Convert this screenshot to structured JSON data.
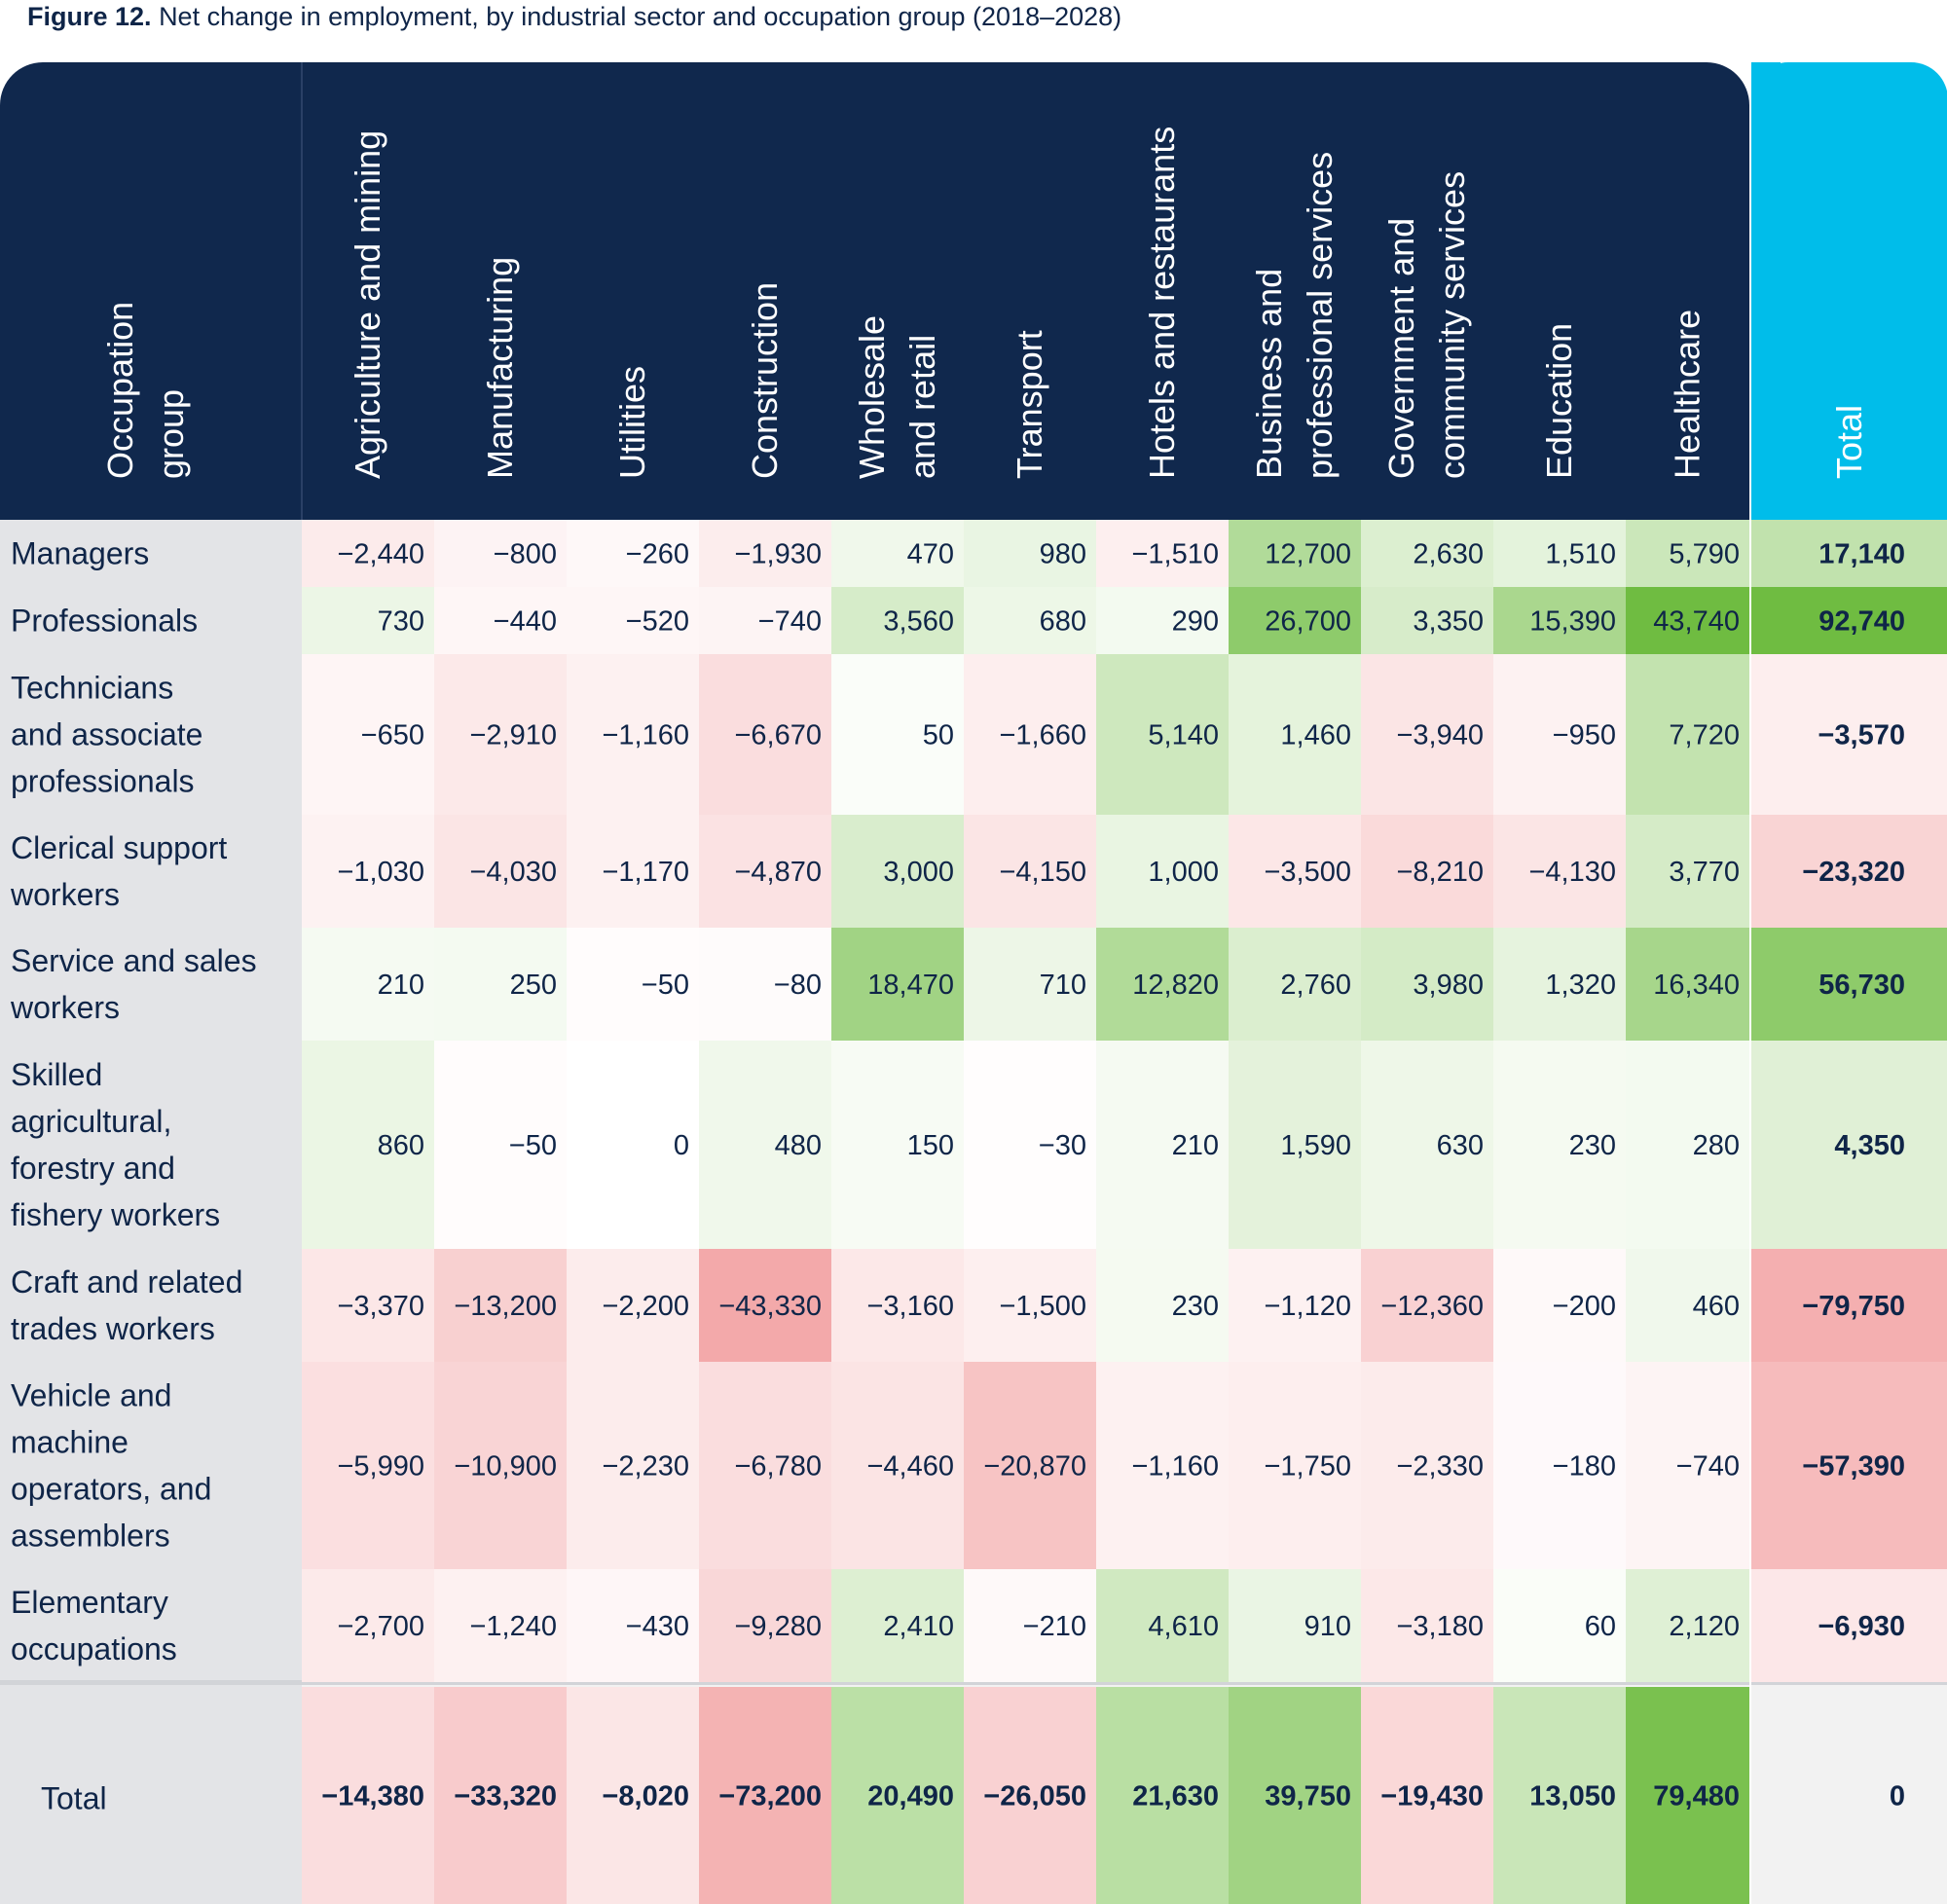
{
  "figure_label": "Figure 12.",
  "figure_caption": "Net change in employment, by industrial sector and occupation group (2018–2028)",
  "colors": {
    "header_navy": "#10284d",
    "total_header": "#00bdea",
    "label_column": "#e3e4e7",
    "positive": "#6fbc41",
    "negative": "#f3a9aa",
    "text": "#0f2548"
  },
  "chart_data": {
    "type": "table",
    "corner_header": [
      "Occupation",
      "group"
    ],
    "columns": [
      [
        "Agriculture and mining"
      ],
      [
        "Manufacturing"
      ],
      [
        "Utilities"
      ],
      [
        "Construction"
      ],
      [
        "Wholesale",
        "and retail"
      ],
      [
        "Transport"
      ],
      [
        "Hotels and restaurants"
      ],
      [
        "Business and",
        "professional services"
      ],
      [
        "Government and",
        "community services"
      ],
      [
        "Education"
      ],
      [
        "Healthcare"
      ]
    ],
    "total_header": "Total",
    "rows": [
      {
        "label": [
          "Managers"
        ],
        "values": [
          -2440,
          -800,
          -260,
          -1930,
          470,
          980,
          -1510,
          12700,
          2630,
          1510,
          5790
        ],
        "total": 17140
      },
      {
        "label": [
          "Professionals"
        ],
        "values": [
          730,
          -440,
          -520,
          -740,
          3560,
          680,
          290,
          26700,
          3350,
          15390,
          43740
        ],
        "total": 92740
      },
      {
        "label": [
          "Technicians",
          "and associate",
          "professionals"
        ],
        "values": [
          -650,
          -2910,
          -1160,
          -6670,
          50,
          -1660,
          5140,
          1460,
          -3940,
          -950,
          7720
        ],
        "total": -3570
      },
      {
        "label": [
          "Clerical support",
          "workers"
        ],
        "values": [
          -1030,
          -4030,
          -1170,
          -4870,
          3000,
          -4150,
          1000,
          -3500,
          -8210,
          -4130,
          3770
        ],
        "total": -23320
      },
      {
        "label": [
          "Service and sales",
          "workers"
        ],
        "values": [
          210,
          250,
          -50,
          -80,
          18470,
          710,
          12820,
          2760,
          3980,
          1320,
          16340
        ],
        "total": 56730
      },
      {
        "label": [
          "Skilled",
          "agricultural,",
          "forestry and",
          "fishery workers"
        ],
        "values": [
          860,
          -50,
          0,
          480,
          150,
          -30,
          210,
          1590,
          630,
          230,
          280
        ],
        "total": 4350
      },
      {
        "label": [
          "Craft and related",
          "trades workers"
        ],
        "values": [
          -3370,
          -13200,
          -2200,
          -43330,
          -3160,
          -1500,
          230,
          -1120,
          -12360,
          -200,
          460
        ],
        "total": -79750
      },
      {
        "label": [
          "Vehicle and",
          "machine",
          "operators, and",
          "assemblers"
        ],
        "values": [
          -5990,
          -10900,
          -2230,
          -6780,
          -4460,
          -20870,
          -1160,
          -1750,
          -2330,
          -180,
          -740
        ],
        "total": -57390
      },
      {
        "label": [
          "Elementary",
          "occupations"
        ],
        "values": [
          -2700,
          -1240,
          -430,
          -9280,
          2410,
          -210,
          4610,
          910,
          -3180,
          60,
          2120
        ],
        "total": -6930
      }
    ],
    "total_row": {
      "label": "Total",
      "values": [
        -14380,
        -33320,
        -8020,
        -73200,
        20490,
        -26050,
        21630,
        39750,
        -19430,
        13050,
        79480
      ],
      "total": 0
    }
  }
}
